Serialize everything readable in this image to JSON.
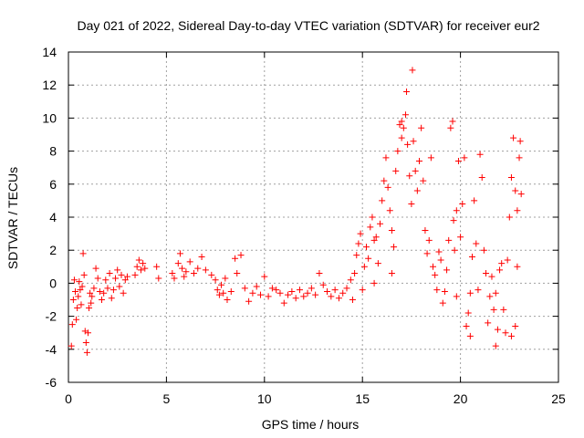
{
  "chart_data": {
    "type": "scatter",
    "title": "Day 021 of 2022, Sidereal Day-to-day VTEC variation (SDTVAR) for receiver eur2",
    "xlabel": "GPS time / hours",
    "ylabel": "SDTVAR / TECUs",
    "xlim": [
      0,
      25
    ],
    "ylim": [
      -6,
      14
    ],
    "xticks": [
      0,
      5,
      10,
      15,
      20,
      25
    ],
    "yticks": [
      -6,
      -4,
      -2,
      0,
      2,
      4,
      6,
      8,
      10,
      12,
      14
    ],
    "xtick_labels": [
      "0",
      "5",
      "10",
      "15",
      "20",
      "25"
    ],
    "ytick_labels": [
      "-6",
      "-4",
      "-2",
      "0",
      "2",
      "4",
      "6",
      "8",
      "10",
      "12",
      "14"
    ],
    "grid": true,
    "marker": "+",
    "color": "#ff0000",
    "series": [
      {
        "name": "eur2",
        "points": [
          [
            0.15,
            -3.8
          ],
          [
            0.2,
            -2.5
          ],
          [
            0.25,
            -1.0
          ],
          [
            0.3,
            0.2
          ],
          [
            0.35,
            -0.5
          ],
          [
            0.4,
            -2.2
          ],
          [
            0.45,
            -1.5
          ],
          [
            0.5,
            -0.8
          ],
          [
            0.55,
            0.1
          ],
          [
            0.6,
            -0.4
          ],
          [
            0.65,
            -1.3
          ],
          [
            0.7,
            -0.2
          ],
          [
            0.75,
            1.8
          ],
          [
            0.8,
            0.5
          ],
          [
            0.85,
            -2.9
          ],
          [
            0.9,
            -3.6
          ],
          [
            0.95,
            -4.2
          ],
          [
            1.0,
            -3.0
          ],
          [
            1.05,
            -1.5
          ],
          [
            1.1,
            -0.6
          ],
          [
            1.15,
            -1.2
          ],
          [
            1.2,
            -0.8
          ],
          [
            1.3,
            -0.3
          ],
          [
            1.4,
            0.9
          ],
          [
            1.5,
            0.3
          ],
          [
            1.6,
            -0.5
          ],
          [
            1.7,
            -1.0
          ],
          [
            1.8,
            -0.6
          ],
          [
            1.9,
            0.2
          ],
          [
            2.0,
            -0.3
          ],
          [
            2.1,
            0.6
          ],
          [
            2.2,
            -0.9
          ],
          [
            2.3,
            -0.4
          ],
          [
            2.4,
            0.3
          ],
          [
            2.5,
            0.8
          ],
          [
            2.6,
            -0.2
          ],
          [
            2.7,
            0.5
          ],
          [
            2.8,
            -0.6
          ],
          [
            2.9,
            0.2
          ],
          [
            3.0,
            0.4
          ],
          [
            3.4,
            0.5
          ],
          [
            3.5,
            1.0
          ],
          [
            3.6,
            1.4
          ],
          [
            3.7,
            0.8
          ],
          [
            3.8,
            1.2
          ],
          [
            3.9,
            0.9
          ],
          [
            4.5,
            1.0
          ],
          [
            4.6,
            0.3
          ],
          [
            5.3,
            0.6
          ],
          [
            5.4,
            0.3
          ],
          [
            5.6,
            1.2
          ],
          [
            5.7,
            1.8
          ],
          [
            5.8,
            0.9
          ],
          [
            5.9,
            0.4
          ],
          [
            6.0,
            0.7
          ],
          [
            6.2,
            1.3
          ],
          [
            6.4,
            0.6
          ],
          [
            6.6,
            0.9
          ],
          [
            6.8,
            1.6
          ],
          [
            7.0,
            0.8
          ],
          [
            7.3,
            0.5
          ],
          [
            7.5,
            0.2
          ],
          [
            7.6,
            -0.4
          ],
          [
            7.7,
            -0.7
          ],
          [
            7.8,
            -0.1
          ],
          [
            7.9,
            -0.6
          ],
          [
            8.0,
            0.3
          ],
          [
            8.1,
            -1.0
          ],
          [
            8.3,
            -0.5
          ],
          [
            8.5,
            1.5
          ],
          [
            8.6,
            0.6
          ],
          [
            8.8,
            1.7
          ],
          [
            9.0,
            -0.3
          ],
          [
            9.2,
            -1.1
          ],
          [
            9.4,
            -0.6
          ],
          [
            9.6,
            -0.2
          ],
          [
            9.8,
            -0.7
          ],
          [
            10.0,
            0.4
          ],
          [
            10.2,
            -0.8
          ],
          [
            10.4,
            -0.3
          ],
          [
            10.6,
            -0.4
          ],
          [
            10.8,
            -0.6
          ],
          [
            11.0,
            -1.2
          ],
          [
            11.2,
            -0.7
          ],
          [
            11.4,
            -0.5
          ],
          [
            11.6,
            -0.9
          ],
          [
            11.8,
            -0.4
          ],
          [
            12.0,
            -0.8
          ],
          [
            12.2,
            -0.6
          ],
          [
            12.4,
            -0.3
          ],
          [
            12.6,
            -0.7
          ],
          [
            12.8,
            0.6
          ],
          [
            13.0,
            -0.1
          ],
          [
            13.2,
            -0.5
          ],
          [
            13.4,
            -0.8
          ],
          [
            13.6,
            -0.4
          ],
          [
            13.8,
            -0.9
          ],
          [
            14.0,
            -0.6
          ],
          [
            14.2,
            -0.3
          ],
          [
            14.4,
            0.2
          ],
          [
            14.5,
            -1.0
          ],
          [
            14.6,
            0.6
          ],
          [
            14.7,
            1.7
          ],
          [
            14.8,
            2.4
          ],
          [
            14.9,
            3.0
          ],
          [
            15.0,
            -0.4
          ],
          [
            15.1,
            1.0
          ],
          [
            15.2,
            2.2
          ],
          [
            15.3,
            1.5
          ],
          [
            15.4,
            3.4
          ],
          [
            15.5,
            4.0
          ],
          [
            15.6,
            2.6
          ],
          [
            15.7,
            2.8
          ],
          [
            15.8,
            1.2
          ],
          [
            15.9,
            3.6
          ],
          [
            16.0,
            5.0
          ],
          [
            16.1,
            6.2
          ],
          [
            16.2,
            7.6
          ],
          [
            16.3,
            5.8
          ],
          [
            16.4,
            4.4
          ],
          [
            16.5,
            3.2
          ],
          [
            16.6,
            2.2
          ],
          [
            16.7,
            6.8
          ],
          [
            16.8,
            8.0
          ],
          [
            16.9,
            9.6
          ],
          [
            17.0,
            8.8
          ],
          [
            17.1,
            9.4
          ],
          [
            17.2,
            10.2
          ],
          [
            17.25,
            11.6
          ],
          [
            17.3,
            8.4
          ],
          [
            17.4,
            6.5
          ],
          [
            17.5,
            4.8
          ],
          [
            17.55,
            12.9
          ],
          [
            17.6,
            8.6
          ],
          [
            17.7,
            6.8
          ],
          [
            17.8,
            5.6
          ],
          [
            17.9,
            7.4
          ],
          [
            18.0,
            9.4
          ],
          [
            18.1,
            6.2
          ],
          [
            18.2,
            3.2
          ],
          [
            18.3,
            1.8
          ],
          [
            18.4,
            2.6
          ],
          [
            18.5,
            7.6
          ],
          [
            18.6,
            1.0
          ],
          [
            18.7,
            0.5
          ],
          [
            18.8,
            -0.4
          ],
          [
            18.9,
            1.9
          ],
          [
            19.0,
            1.4
          ],
          [
            19.1,
            -1.2
          ],
          [
            19.2,
            -0.5
          ],
          [
            19.3,
            0.8
          ],
          [
            19.4,
            2.6
          ],
          [
            19.5,
            9.4
          ],
          [
            19.6,
            9.8
          ],
          [
            19.65,
            3.8
          ],
          [
            19.7,
            2.0
          ],
          [
            19.8,
            4.4
          ],
          [
            19.9,
            7.4
          ],
          [
            20.0,
            2.8
          ],
          [
            20.1,
            4.8
          ],
          [
            20.2,
            7.6
          ],
          [
            20.3,
            -2.6
          ],
          [
            20.4,
            -1.8
          ],
          [
            20.5,
            -0.6
          ],
          [
            20.6,
            1.6
          ],
          [
            20.7,
            5.0
          ],
          [
            20.8,
            2.4
          ],
          [
            20.9,
            -0.4
          ],
          [
            21.0,
            7.8
          ],
          [
            21.1,
            6.4
          ],
          [
            21.2,
            2.0
          ],
          [
            21.3,
            0.6
          ],
          [
            21.4,
            -2.4
          ],
          [
            21.5,
            -0.8
          ],
          [
            21.6,
            0.4
          ],
          [
            21.7,
            -1.6
          ],
          [
            21.8,
            -0.6
          ],
          [
            21.9,
            -2.8
          ],
          [
            22.0,
            0.8
          ],
          [
            22.1,
            1.2
          ],
          [
            22.2,
            -1.6
          ],
          [
            22.3,
            -3.0
          ],
          [
            22.4,
            1.4
          ],
          [
            22.5,
            4.0
          ],
          [
            22.6,
            6.4
          ],
          [
            22.7,
            8.8
          ],
          [
            22.8,
            5.6
          ],
          [
            22.9,
            4.4
          ],
          [
            23.0,
            7.6
          ],
          [
            23.05,
            8.6
          ],
          [
            23.1,
            5.4
          ],
          [
            22.9,
            1.0
          ],
          [
            22.8,
            -2.6
          ],
          [
            22.6,
            -3.2
          ],
          [
            21.8,
            -3.8
          ],
          [
            20.5,
            -3.2
          ],
          [
            19.8,
            -0.8
          ],
          [
            17.0,
            9.8
          ],
          [
            16.5,
            0.6
          ],
          [
            15.6,
            0.0
          ]
        ]
      }
    ]
  }
}
